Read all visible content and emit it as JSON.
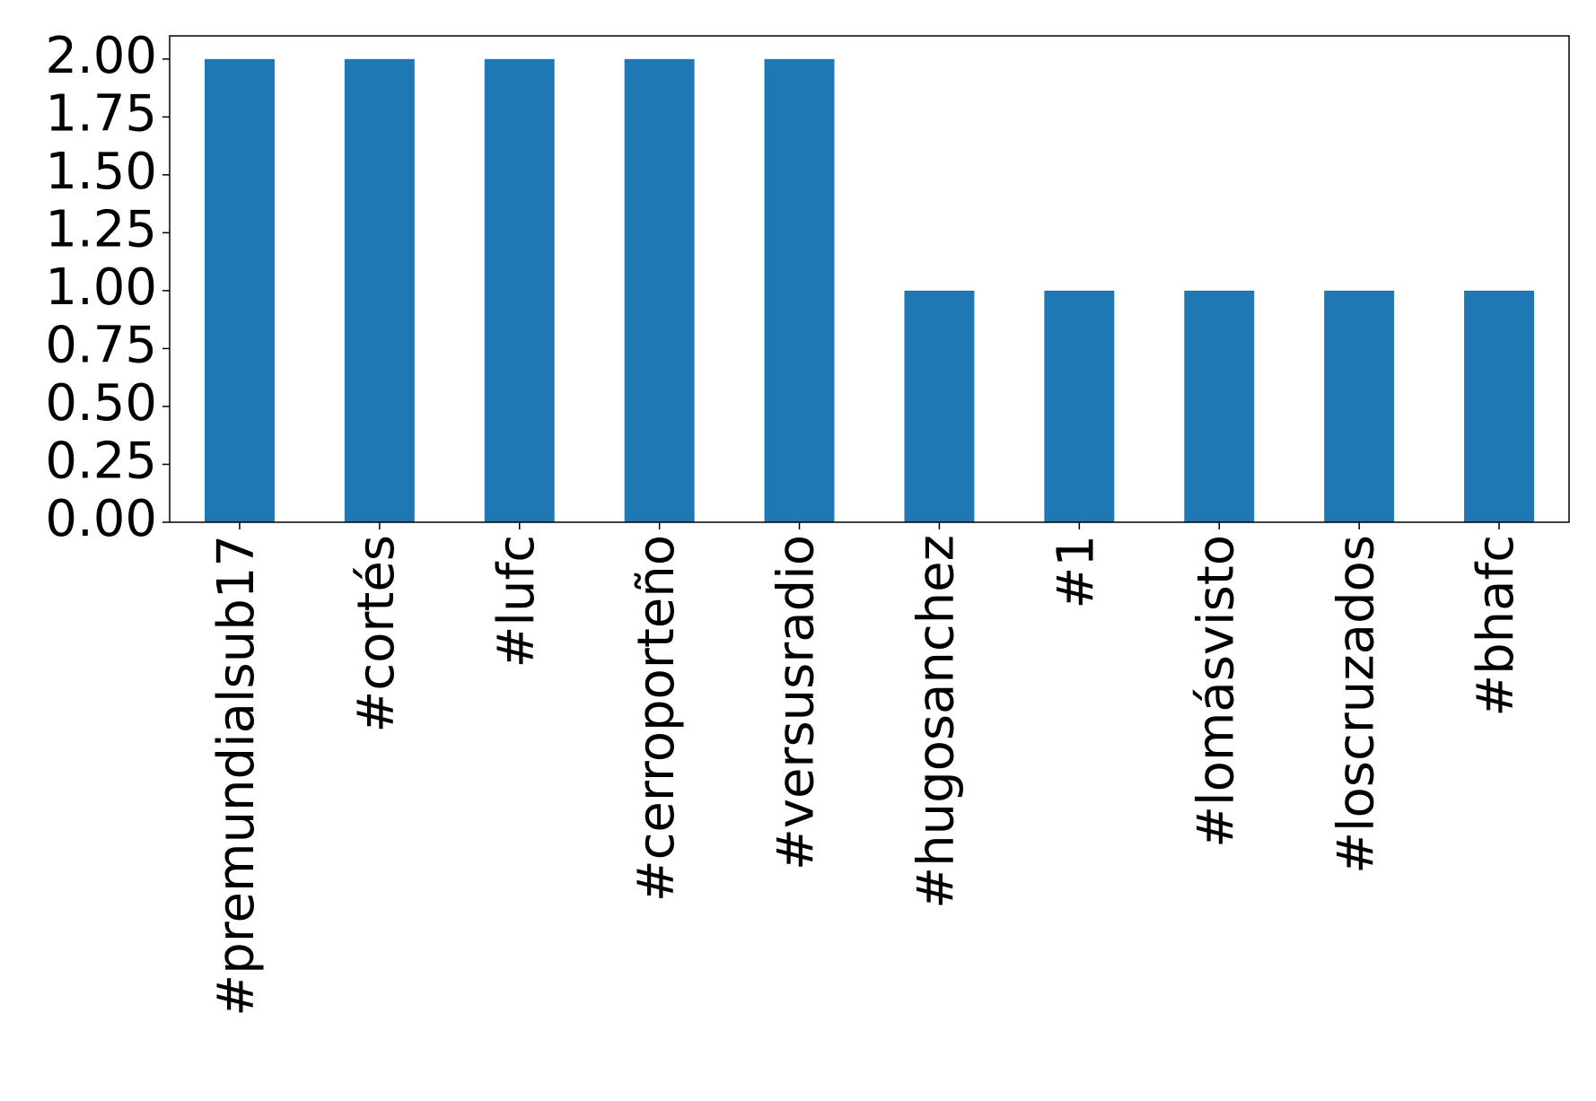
{
  "chart_data": {
    "type": "bar",
    "categories": [
      "#premundialsub17",
      "#cortés",
      "#lufc",
      "#cerroporteño",
      "#versusradio",
      "#hugosanchez",
      "#1",
      "#lomásvisto",
      "#loscruzados",
      "#bhafc"
    ],
    "values": [
      2,
      2,
      2,
      2,
      2,
      1,
      1,
      1,
      1,
      1
    ],
    "color": "#1f77b4",
    "ylim": [
      0,
      2.1
    ],
    "yticks": [
      {
        "value": 0,
        "label": "0.00"
      },
      {
        "value": 0.25,
        "label": "0.25"
      },
      {
        "value": 0.5,
        "label": "0.50"
      },
      {
        "value": 0.75,
        "label": "0.75"
      },
      {
        "value": 1,
        "label": "1.00"
      },
      {
        "value": 1.25,
        "label": "1.25"
      },
      {
        "value": 1.5,
        "label": "1.50"
      },
      {
        "value": 1.75,
        "label": "1.75"
      },
      {
        "value": 2,
        "label": "2.00"
      }
    ],
    "grid": false
  }
}
